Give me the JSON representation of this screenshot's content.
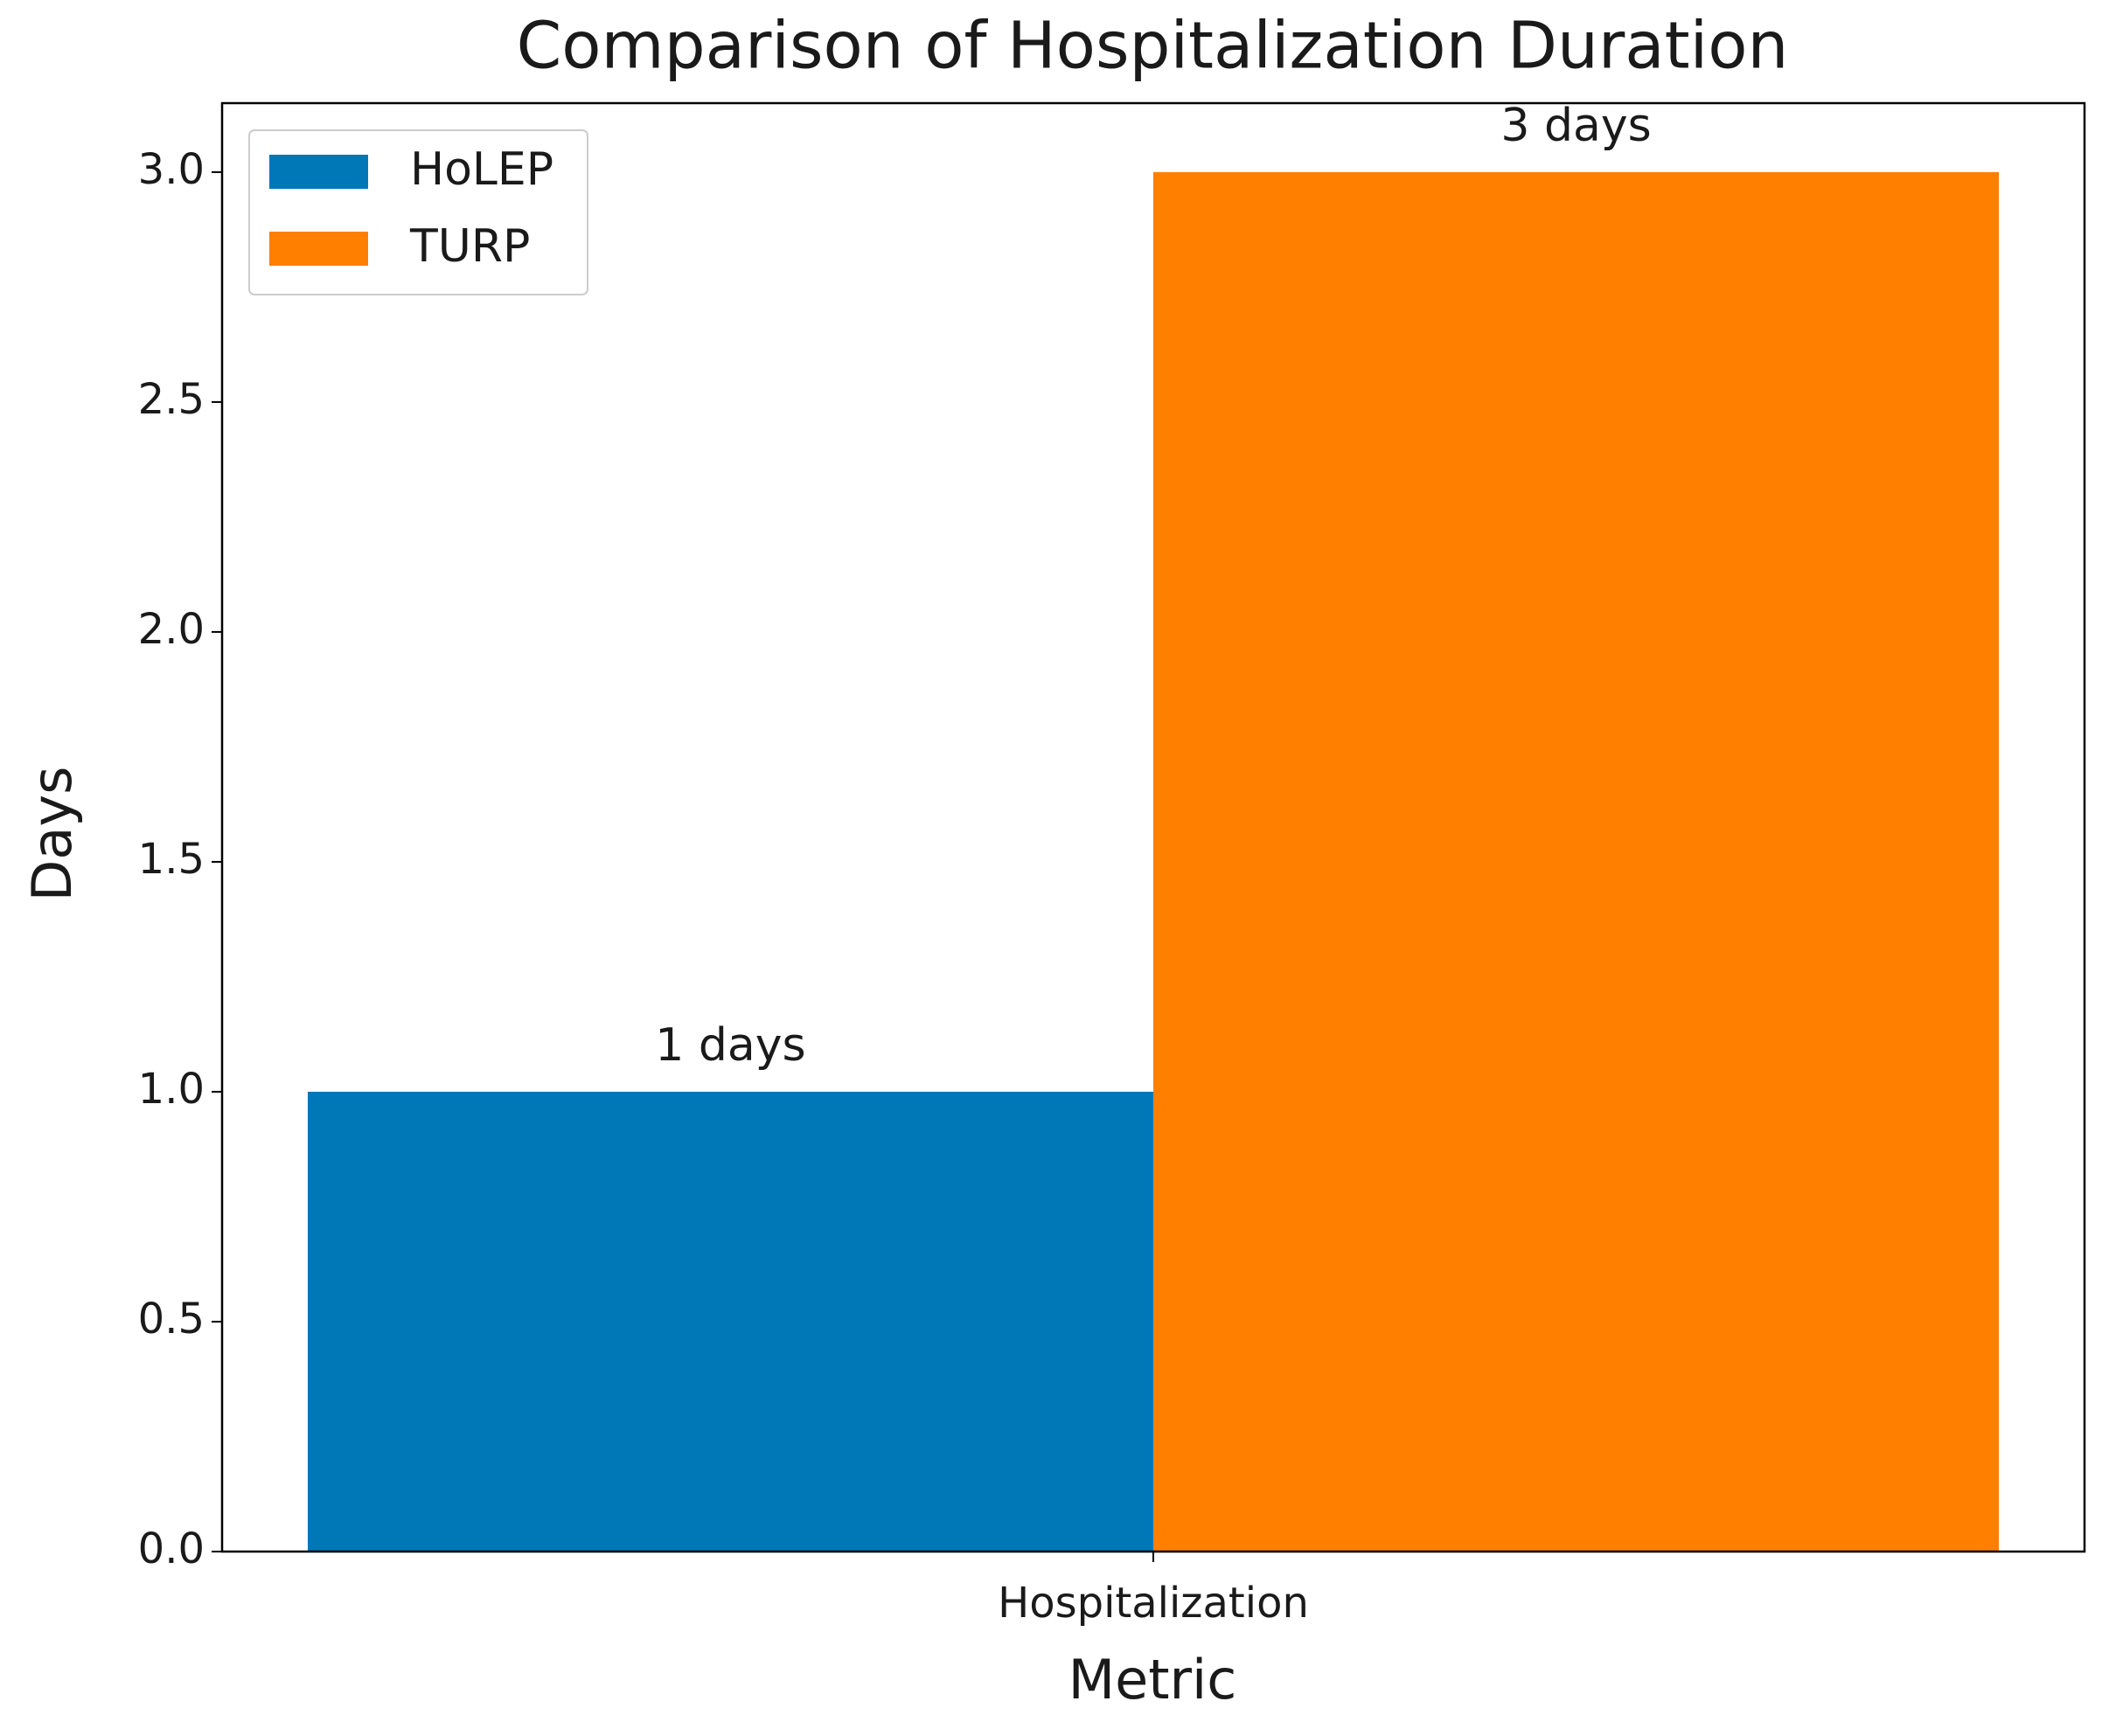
{
  "chart_data": {
    "type": "bar",
    "title": "Comparison of Hospitalization Duration",
    "x_label": "Metric",
    "y_label": "Days",
    "categories": [
      "Hospitalization"
    ],
    "series": [
      {
        "name": "HoLEP",
        "color": "#0077b6",
        "values": [
          1
        ],
        "value_labels": [
          "1 days"
        ]
      },
      {
        "name": "TURP",
        "color": "#ff7f00",
        "values": [
          3
        ],
        "value_labels": [
          "3 days"
        ]
      }
    ],
    "ylim": [
      0,
      3.15
    ],
    "yticks": [
      {
        "value": 0,
        "label": "0.0"
      },
      {
        "value": 0.5,
        "label": "0.5"
      },
      {
        "value": 1,
        "label": "1.0"
      },
      {
        "value": 1.5,
        "label": "1.5"
      },
      {
        "value": 2,
        "label": "2.0"
      },
      {
        "value": 2.5,
        "label": "2.5"
      },
      {
        "value": 3,
        "label": "3.0"
      }
    ],
    "grid": false,
    "legend_position": "upper left"
  }
}
